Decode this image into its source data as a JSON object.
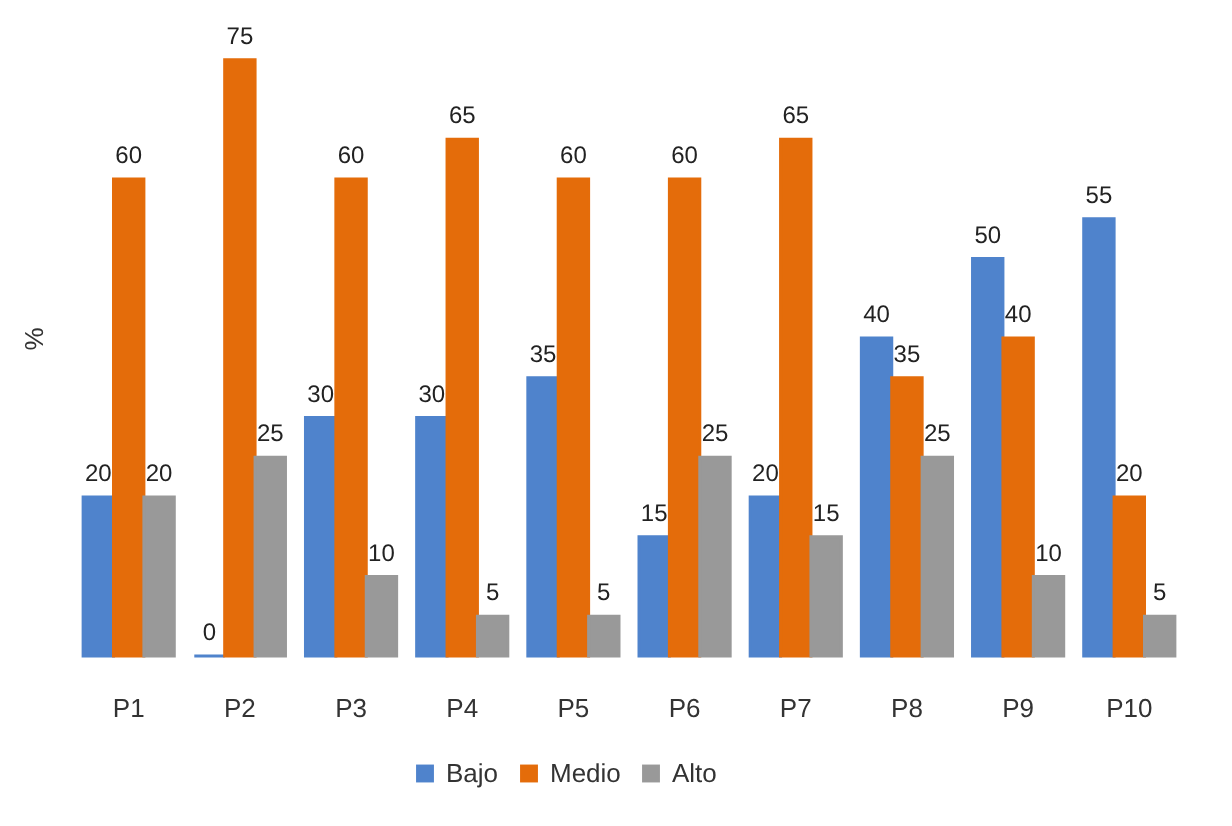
{
  "chart_data": {
    "type": "bar",
    "ylabel": "%",
    "categories": [
      "P1",
      "P2",
      "P3",
      "P4",
      "P5",
      "P6",
      "P7",
      "P8",
      "P9",
      "P10"
    ],
    "series": [
      {
        "name": "Bajo",
        "color": "#4f83cc",
        "values": [
          20,
          0,
          30,
          30,
          35,
          15,
          20,
          40,
          50,
          55
        ]
      },
      {
        "name": "Medio",
        "color": "#e46c0a",
        "values": [
          60,
          75,
          60,
          65,
          60,
          60,
          65,
          35,
          40,
          20
        ]
      },
      {
        "name": "Alto",
        "color": "#999999",
        "values": [
          20,
          25,
          10,
          5,
          5,
          25,
          15,
          25,
          10,
          5
        ]
      }
    ],
    "data_labels": true,
    "grid": false,
    "legend": "bottom",
    "tick_labels": "x"
  }
}
